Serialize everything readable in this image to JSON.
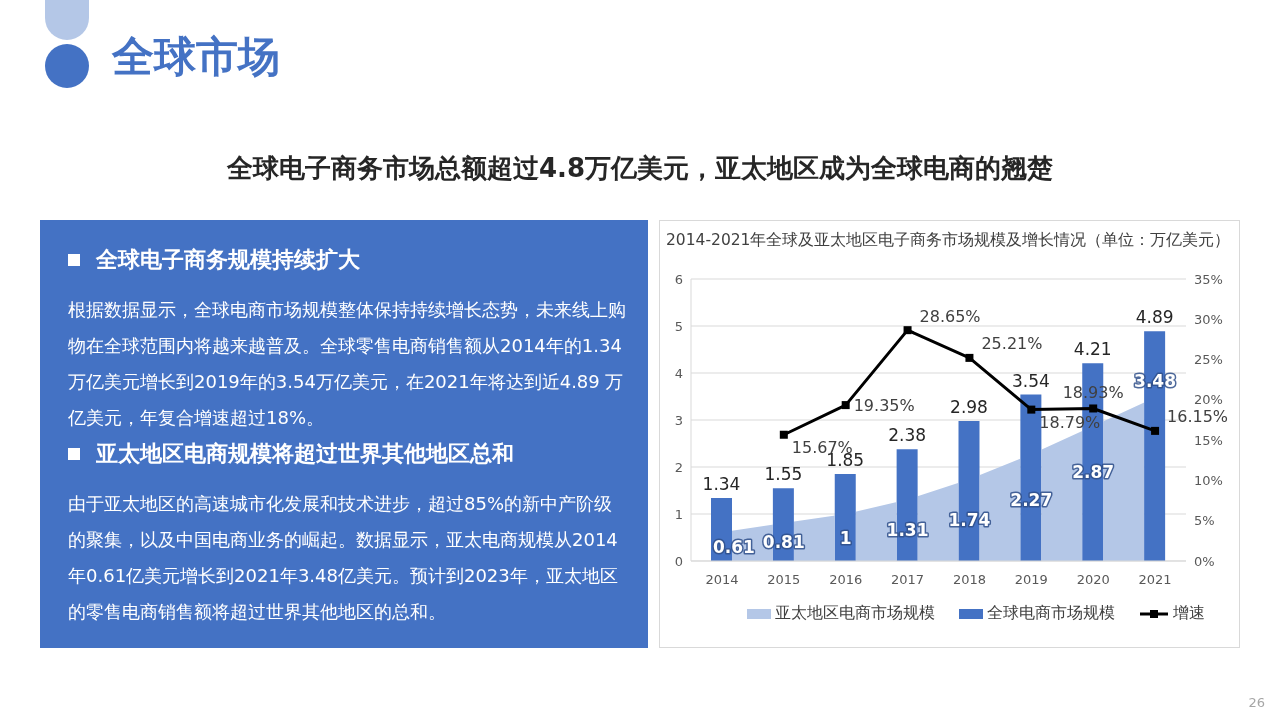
{
  "chart_data": [
    {
      "type": "other",
      "title": "全球市场",
      "subtitle": "全球电子商务市场总额超过4.8万亿美元，亚太地区成为全球电商的翘楚",
      "annotations": [
        "全球电子商务规模持续扩大",
        "根据数据显示，全球电商市场规模整体保持持续增长态势，未来线上购物在全球范围内将越来越普及。全球零售电商销售额从2014年的1.34万亿美元增长到2019年的3.54万亿美元，在2021年将达到近4.89 万亿美元，年复合增速超过18%。",
        "亚太地区电商规模将超过世界其他地区总和",
        "由于亚太地区的高速城市化发展和技术进步，超过85%的新中产阶级的聚集，以及中国电商业务的崛起。数据显示，亚太电商规模从2014年0.61亿美元增长到2021年3.48亿美元。预计到2023年，亚太地区的零售电商销售额将超过世界其他地区的总和。"
      ]
    },
    {
      "type": "bar",
      "title": "2014-2021年全球及亚太地区电子商务市场规模及增长情况（单位：万亿美元）",
      "categories": [
        "2014",
        "2015",
        "2016",
        "2017",
        "2018",
        "2019",
        "2020",
        "2021"
      ],
      "series": [
        {
          "name": "亚太地区电商市场规模",
          "type": "area",
          "color": "#b4c7e7",
          "values": [
            0.61,
            0.81,
            1,
            1.31,
            1.74,
            2.27,
            2.87,
            3.48
          ],
          "value_labels": [
            "0.61",
            "0.81",
            "1",
            "1.31",
            "1.74",
            "2.27",
            "2.87",
            "3.48"
          ]
        },
        {
          "name": "全球电商市场规模",
          "type": "bar",
          "color": "#4472c4",
          "values": [
            1.34,
            1.55,
            1.85,
            2.38,
            2.98,
            3.54,
            4.21,
            4.89
          ],
          "value_labels": [
            "1.34",
            "1.55",
            "1.85",
            "2.38",
            "2.98",
            "3.54",
            "4.21",
            "4.89"
          ]
        },
        {
          "name": "增速",
          "type": "line",
          "axis": "y2",
          "color": "#000000",
          "marker": "square",
          "values": [
            null,
            15.67,
            19.35,
            28.65,
            25.21,
            18.79,
            18.93,
            16.15
          ],
          "value_labels": [
            null,
            "15.67%",
            "19.35%",
            "28.65%",
            "25.21%",
            "18.79%",
            "18.93%",
            "16.15%"
          ]
        }
      ],
      "ylim": [
        0,
        6
      ],
      "yticks": [
        0,
        1,
        2,
        3,
        4,
        5,
        6
      ],
      "y2lim": [
        0,
        35
      ],
      "y2ticks": [
        {
          "value": 0,
          "label": "0%"
        },
        {
          "value": 5,
          "label": "5%"
        },
        {
          "value": 10,
          "label": "10%"
        },
        {
          "value": 15,
          "label": "15%"
        },
        {
          "value": 20,
          "label": "20%"
        },
        {
          "value": 25,
          "label": "25%"
        },
        {
          "value": 30,
          "label": "30%"
        },
        {
          "value": 35,
          "label": "35%"
        }
      ],
      "grid": "y",
      "legend": "bottom",
      "annotations": [
        "26"
      ]
    }
  ]
}
